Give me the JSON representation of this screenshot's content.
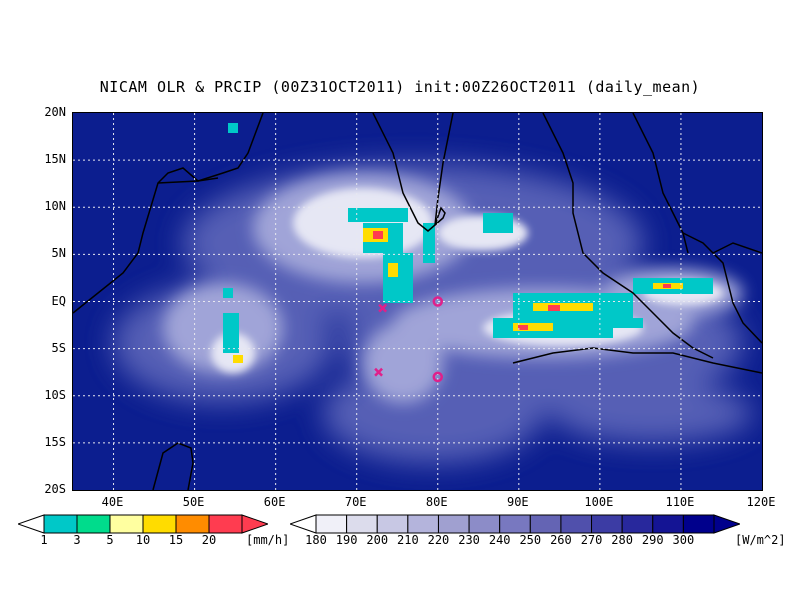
{
  "title": "NICAM OLR & PRCIP (00Z31OCT2011) init:00Z26OCT2011 (daily_mean)",
  "map": {
    "lon_range": [
      35,
      120
    ],
    "lat_range": [
      -20,
      20
    ],
    "lat_ticks": [
      "20N",
      "15N",
      "10N",
      "5N",
      "EQ",
      "5S",
      "10S",
      "15S",
      "20S"
    ],
    "lon_ticks": [
      "40E",
      "50E",
      "60E",
      "70E",
      "80E",
      "90E",
      "100E",
      "110E",
      "120E"
    ],
    "grid": "dotted",
    "ocean_color": "#0c1e8f",
    "markers": [
      {
        "type": "x",
        "lon": 73.2,
        "lat": -0.7,
        "color": "#e0208a"
      },
      {
        "type": "x",
        "lon": 72.7,
        "lat": -7.5,
        "color": "#e0208a"
      },
      {
        "type": "circle",
        "lon": 80.0,
        "lat": 0.0,
        "color": "#e0208a"
      },
      {
        "type": "circle",
        "lon": 80.0,
        "lat": -8.0,
        "color": "#e0208a"
      }
    ]
  },
  "precip_colorbar": {
    "labels": [
      "1",
      "3",
      "5",
      "10",
      "15",
      "20"
    ],
    "unit": "[mm/h]",
    "colors": [
      "#00c8c8",
      "#00dc8c",
      "#ffffa0",
      "#ffdc00",
      "#ff8c00",
      "#ff3c50"
    ]
  },
  "olr_colorbar": {
    "labels": [
      "180",
      "190",
      "200",
      "210",
      "220",
      "230",
      "240",
      "250",
      "260",
      "270",
      "280",
      "290",
      "300"
    ],
    "unit": "[W/m^2]",
    "colors": [
      "#f0f0f8",
      "#dcdcec",
      "#c8c8e4",
      "#b4b4dc",
      "#a0a0d0",
      "#8c8cc8",
      "#7878c0",
      "#6464b4",
      "#5050ac",
      "#3c3ca4",
      "#28289c",
      "#141494",
      "#00008c"
    ]
  }
}
